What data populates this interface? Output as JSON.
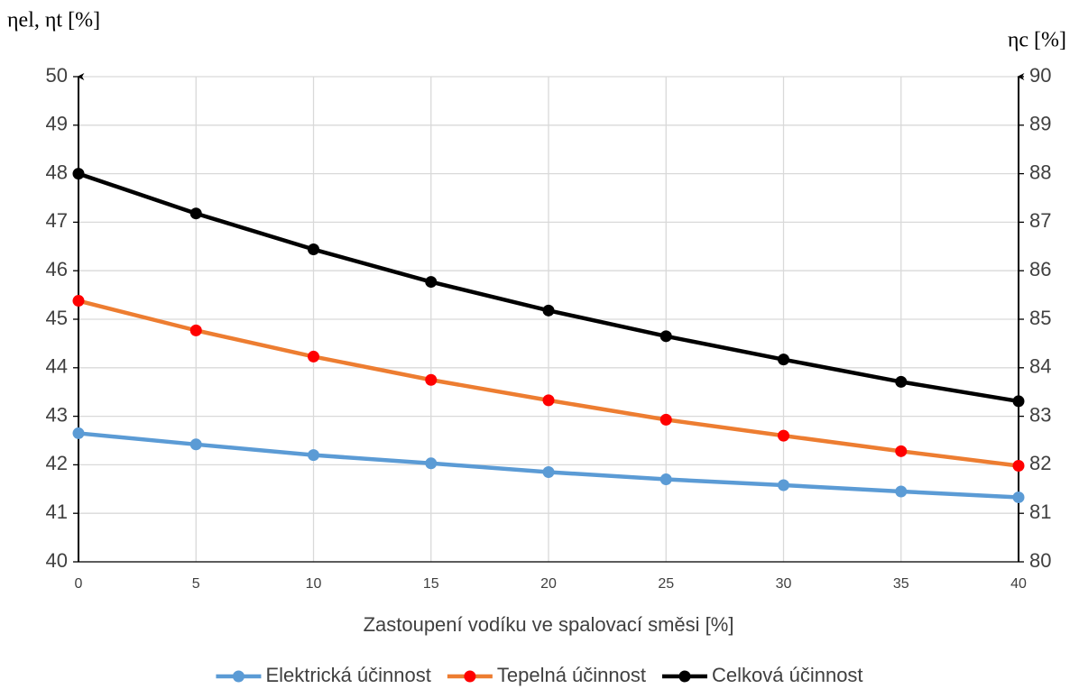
{
  "chart_data": {
    "type": "line",
    "x_label": "Zastoupení vodíku ve spalovací směsi [%]",
    "y_label": "ηel, ηt [%]",
    "y2_label": "ηc [%]",
    "x": [
      0,
      5,
      10,
      15,
      20,
      25,
      30,
      35,
      40
    ],
    "xlim": [
      0,
      40
    ],
    "xticks": [
      0,
      5,
      10,
      15,
      20,
      25,
      30,
      35,
      40
    ],
    "ylim": [
      40,
      50
    ],
    "yticks": [
      40,
      41,
      42,
      43,
      44,
      45,
      46,
      47,
      48,
      49,
      50
    ],
    "y2lim": [
      80,
      90
    ],
    "y2ticks": [
      80,
      81,
      82,
      83,
      84,
      85,
      86,
      87,
      88,
      89,
      90
    ],
    "grid": true,
    "legend": "bottom",
    "series": [
      {
        "name": "Elektrická účinnost",
        "color": "#5b9bd5",
        "marker_color": "#5b9bd5",
        "values": [
          42.65,
          42.42,
          42.2,
          42.03,
          41.85,
          41.7,
          41.58,
          41.45,
          41.33
        ]
      },
      {
        "name": "Tepelná účinnost",
        "color": "#ed7d31",
        "marker_color": "#ff0000",
        "values": [
          45.38,
          44.77,
          44.23,
          43.75,
          43.33,
          42.93,
          42.6,
          42.28,
          41.98
        ]
      },
      {
        "name": "Celková účinnost",
        "color": "#000000",
        "marker_color": "#000000",
        "axis": "y2",
        "values": [
          88.0,
          87.18,
          86.44,
          85.77,
          85.18,
          84.65,
          84.17,
          83.71,
          83.31
        ]
      }
    ]
  }
}
